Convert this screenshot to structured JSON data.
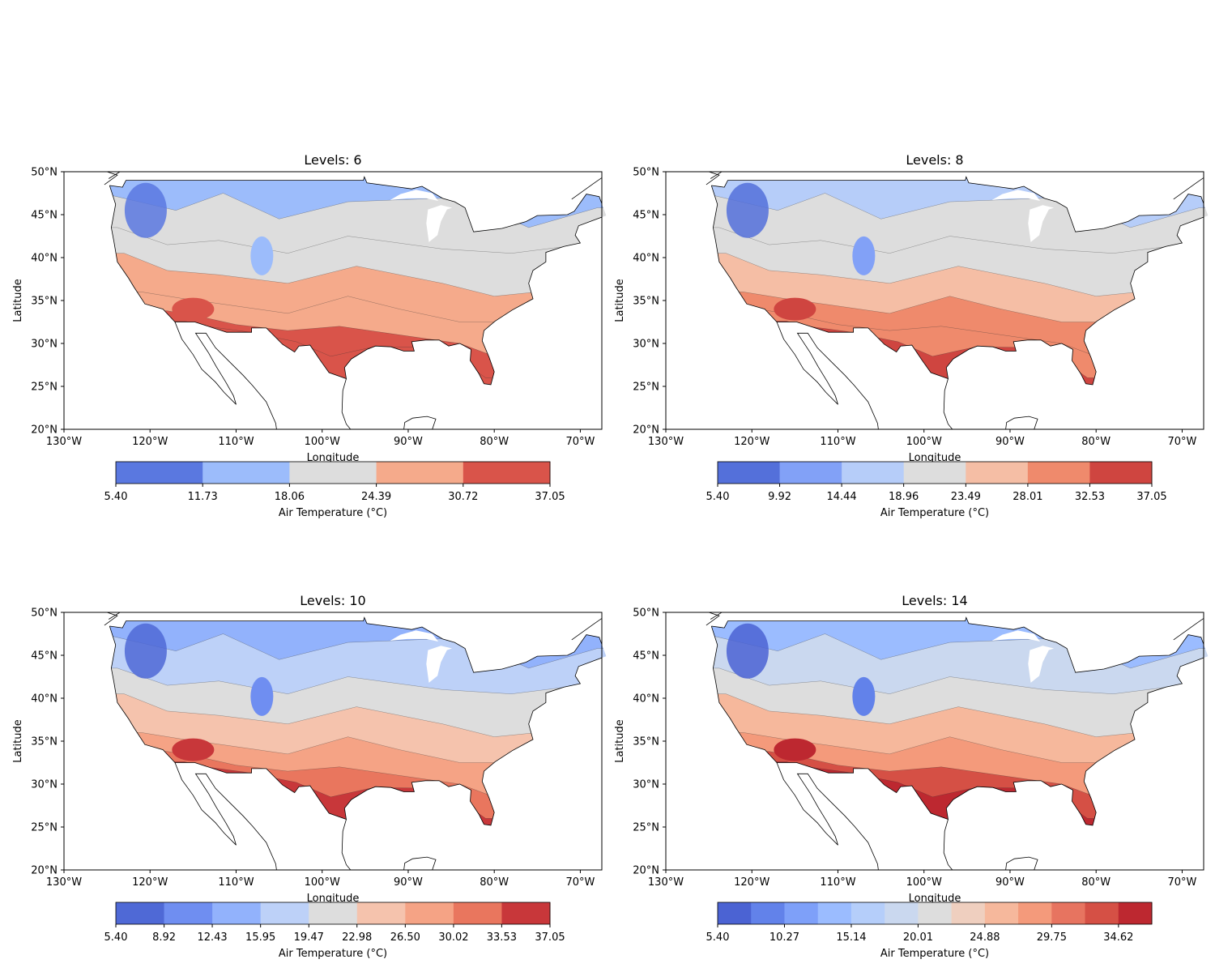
{
  "panels": [
    {
      "title": "Levels: 6",
      "xlabel": "Longitude",
      "ylabel": "Latitude",
      "x_ticks": [
        "130°W",
        "120°W",
        "110°W",
        "100°W",
        "90°W",
        "80°W",
        "70°W"
      ],
      "y_ticks": [
        "20°N",
        "25°N",
        "30°N",
        "35°N",
        "40°N",
        "45°N",
        "50°N"
      ],
      "colorbar_label": "Air Temperature (°C)",
      "colorbar_ticks": [
        "5.40",
        "11.73",
        "18.06",
        "24.39",
        "30.72",
        "37.05"
      ],
      "colors": [
        "#5a78e0",
        "#9cbcfb",
        "#dddddd",
        "#f5aa8b",
        "#d9544a"
      ]
    },
    {
      "title": "Levels: 8",
      "xlabel": "Longitude",
      "ylabel": "Latitude",
      "x_ticks": [
        "130°W",
        "120°W",
        "110°W",
        "100°W",
        "90°W",
        "80°W",
        "70°W"
      ],
      "y_ticks": [
        "20°N",
        "25°N",
        "30°N",
        "35°N",
        "40°N",
        "45°N",
        "50°N"
      ],
      "colorbar_label": "Air Temperature (°C)",
      "colorbar_ticks": [
        "5.40",
        "9.92",
        "14.44",
        "18.96",
        "23.49",
        "28.01",
        "32.53",
        "37.05"
      ],
      "colors": [
        "#5470da",
        "#82a1f7",
        "#b6cdf9",
        "#dddddd",
        "#f5bea5",
        "#ef8a6c",
        "#cf4540"
      ]
    },
    {
      "title": "Levels: 10",
      "xlabel": "Longitude",
      "ylabel": "Latitude",
      "x_ticks": [
        "130°W",
        "120°W",
        "110°W",
        "100°W",
        "90°W",
        "80°W",
        "70°W"
      ],
      "y_ticks": [
        "20°N",
        "25°N",
        "30°N",
        "35°N",
        "40°N",
        "45°N",
        "50°N"
      ],
      "colorbar_label": "Air Temperature (°C)",
      "colorbar_ticks": [
        "5.40",
        "8.92",
        "12.43",
        "15.95",
        "19.47",
        "22.98",
        "26.50",
        "30.02",
        "33.53",
        "37.05"
      ],
      "colors": [
        "#4f69d6",
        "#6f8ef1",
        "#92b2fc",
        "#bdd1f8",
        "#dddddd",
        "#f5c3ad",
        "#f5a385",
        "#e9765e",
        "#c8373a"
      ]
    },
    {
      "title": "Levels: 14",
      "xlabel": "Longitude",
      "ylabel": "Latitude",
      "x_ticks": [
        "130°W",
        "120°W",
        "110°W",
        "100°W",
        "90°W",
        "80°W",
        "70°W"
      ],
      "y_ticks": [
        "20°N",
        "25°N",
        "30°N",
        "35°N",
        "40°N",
        "45°N",
        "50°N"
      ],
      "colorbar_label": "Air Temperature (°C)",
      "colorbar_ticks": [
        "5.40",
        "10.27",
        "15.14",
        "20.01",
        "24.88",
        "29.75",
        "34.62"
      ],
      "colors": [
        "#4b63d3",
        "#6282ea",
        "#7ea0f9",
        "#9bbcff",
        "#b5cefa",
        "#cad8ef",
        "#dddddd",
        "#efcfbf",
        "#f6b89c",
        "#f49a7b",
        "#e77460",
        "#d55045",
        "#bd2830"
      ]
    }
  ]
}
